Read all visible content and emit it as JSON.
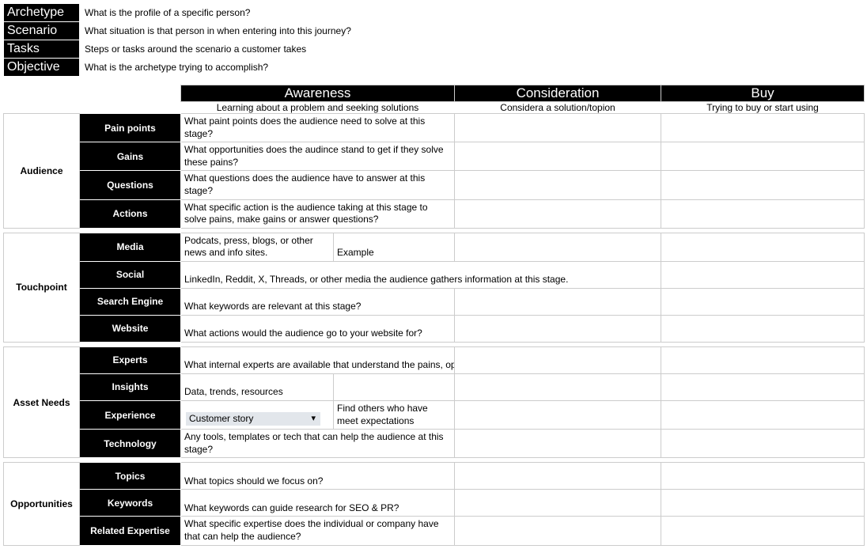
{
  "topdefs": [
    {
      "label": "Archetype",
      "desc": "What is the profile of a specific person?"
    },
    {
      "label": "Scenario",
      "desc": "What situation is that person in when entering into this journey?"
    },
    {
      "label": "Tasks",
      "desc": "Steps or tasks around the scenario a customer takes"
    },
    {
      "label": "Objective",
      "desc": "What is the archetype trying to accomplish?"
    }
  ],
  "stages": {
    "awareness": {
      "title": "Awareness",
      "sub": "Learning about a problem and seeking solutions"
    },
    "consideration": {
      "title": "Consideration",
      "sub": "Considera a solution/topion"
    },
    "buy": {
      "title": "Buy",
      "sub": "Trying to buy or start using"
    }
  },
  "groups": {
    "audience": {
      "label": "Audience",
      "rows": {
        "pain": {
          "label": "Pain points",
          "a": "What paint points does the audience need to solve at this stage?",
          "c": "",
          "b": ""
        },
        "gains": {
          "label": "Gains",
          "a": "What opportunities does the audince stand to get if they solve these pains?",
          "c": "",
          "b": ""
        },
        "questions": {
          "label": "Questions",
          "a": "What questions does the audience have to answer at this stage?",
          "c": "",
          "b": ""
        },
        "actions": {
          "label": "Actions",
          "a": "What specific action is the audience taking at this stage to solve pains, make gains or answer questions?",
          "c": "",
          "b": ""
        }
      }
    },
    "touchpoint": {
      "label": "Touchpoint",
      "rows": {
        "media": {
          "label": "Media",
          "aL": "Podcats, press, blogs, or other news and info sites.",
          "aR": "Example",
          "c": "",
          "b": ""
        },
        "social": {
          "label": "Social",
          "a": "LinkedIn, Reddit, X, Threads, or other media the audience gathers information at this stage.",
          "c": "",
          "b": ""
        },
        "search": {
          "label": "Search Engine",
          "a": "What keywords are relevant at this stage?",
          "c": "",
          "b": ""
        },
        "site": {
          "label": "Website",
          "a": "What actions would the audience go to your website for?",
          "c": "",
          "b": ""
        }
      }
    },
    "assets": {
      "label": "Asset Needs",
      "rows": {
        "experts": {
          "label": "Experts",
          "a": "What internal experts are available that understand the pains, opportuniti",
          "c": "",
          "b": ""
        },
        "insights": {
          "label": "Insights",
          "a": "Data, trends, resources",
          "c": "",
          "b": ""
        },
        "exp": {
          "label": "Experience",
          "dd": "Customer story",
          "aR": "Find others who have meet expectations",
          "c": "",
          "b": ""
        },
        "tech": {
          "label": "Technology",
          "a": "Any tools, templates or tech that can help the audience at this stage?",
          "c": "",
          "b": ""
        }
      }
    },
    "opps": {
      "label": "Opportunities",
      "rows": {
        "topics": {
          "label": "Topics",
          "a": "What topics should we focus on?",
          "c": "",
          "b": ""
        },
        "keywords": {
          "label": "Keywords",
          "a": "What keywords can guide research for SEO & PR?",
          "c": "",
          "b": ""
        },
        "rel": {
          "label": "Related Expertise",
          "a": "What specific expertise does the individual or company have that can help the audience?",
          "c": "",
          "b": ""
        }
      }
    }
  },
  "colors": {
    "dark": "#000000",
    "light": "#ffffff",
    "grid": "#cccccc",
    "dd": "#e2e6eb"
  }
}
